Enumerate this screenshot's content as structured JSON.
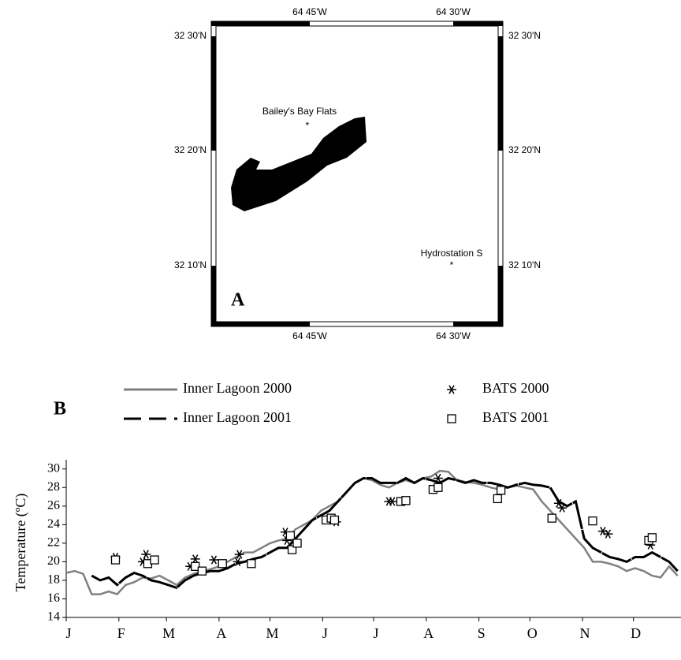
{
  "map": {
    "panel_label": "A",
    "x_labels": [
      "64 45'W",
      "64 30'W"
    ],
    "y_labels": [
      "32 30'N",
      "32 20'N",
      "32 10'N"
    ],
    "sites": [
      "Bailey's Bay Flats",
      "Hydrostation S"
    ]
  },
  "chart_data": {
    "type": "line",
    "panel_label": "B",
    "y_label": "Temperature (ºC)",
    "x": [
      0,
      5,
      10,
      15,
      20,
      25,
      30,
      35,
      40,
      45,
      50,
      55,
      60,
      65,
      70,
      75,
      80,
      85,
      90,
      95,
      100,
      105,
      110,
      115,
      120,
      125,
      130,
      135,
      140,
      145,
      150,
      155,
      160,
      165,
      170,
      175,
      180,
      185,
      190,
      195,
      200,
      205,
      210,
      215,
      220,
      225,
      230,
      235,
      240,
      245,
      250,
      255,
      260,
      265,
      270,
      275,
      280,
      285,
      290,
      295,
      300,
      305,
      310,
      315,
      320,
      325,
      330,
      335,
      340,
      345,
      350,
      355,
      360
    ],
    "xlim": [
      0,
      362
    ],
    "xticks": [
      {
        "value": 0,
        "label": "J"
      },
      {
        "value": 31,
        "label": "F"
      },
      {
        "value": 59,
        "label": "M"
      },
      {
        "value": 90,
        "label": "A"
      },
      {
        "value": 120,
        "label": "M"
      },
      {
        "value": 151,
        "label": "J"
      },
      {
        "value": 181,
        "label": "J"
      },
      {
        "value": 212,
        "label": "A"
      },
      {
        "value": 243,
        "label": "S"
      },
      {
        "value": 273,
        "label": "O"
      },
      {
        "value": 304,
        "label": "N"
      },
      {
        "value": 334,
        "label": "D"
      }
    ],
    "ylim": [
      14,
      31
    ],
    "yticks": [
      14,
      16,
      18,
      20,
      22,
      24,
      26,
      28,
      30
    ],
    "series": [
      {
        "name": "Inner Lagoon 2000",
        "type": "line",
        "color": "#808080",
        "linestyle": "solid",
        "values": [
          18.8,
          19,
          18.7,
          16.5,
          16.5,
          16.8,
          16.5,
          17.5,
          17.8,
          18.3,
          18.2,
          18.5,
          18.0,
          17.5,
          18.3,
          18.7,
          19.0,
          19.2,
          19.5,
          20.0,
          20.5,
          21.0,
          21.0,
          21.5,
          22.0,
          22.3,
          22.5,
          23.5,
          24.0,
          24.5,
          25.5,
          26.0,
          26.5,
          27.5,
          28.5,
          29.0,
          28.8,
          28.3,
          28.0,
          28.5,
          28.8,
          28.5,
          29.0,
          29.2,
          29.8,
          29.7,
          28.8,
          28.6,
          28.5,
          28.3,
          28.0,
          27.8,
          28.0,
          28.2,
          28.0,
          27.8,
          26.5,
          25.5,
          24.5,
          23.5,
          22.5,
          21.5,
          20.0,
          20.0,
          19.8,
          19.5,
          19.0,
          19.3,
          19.0,
          18.5,
          18.3,
          19.5,
          18.5
        ]
      },
      {
        "name": "Inner Lagoon 2001",
        "type": "line",
        "color": "#000000",
        "linestyle": "dashed",
        "values": [
          null,
          null,
          null,
          18.5,
          18.0,
          18.3,
          17.5,
          18.3,
          18.8,
          18.5,
          18.0,
          17.8,
          17.5,
          17.2,
          18.0,
          18.5,
          18.8,
          19.0,
          19.0,
          19.3,
          19.8,
          20.0,
          20.3,
          20.5,
          21.0,
          21.5,
          21.5,
          22.5,
          23.5,
          24.5,
          25.0,
          25.5,
          26.5,
          27.5,
          28.5,
          29.0,
          29.0,
          28.5,
          28.5,
          28.5,
          29.0,
          28.5,
          29.0,
          28.8,
          28.5,
          29.0,
          28.8,
          28.5,
          28.8,
          28.5,
          28.5,
          28.3,
          28.0,
          28.3,
          28.5,
          28.3,
          28.2,
          28.0,
          26.5,
          26.0,
          26.5,
          22.5,
          21.5,
          21.0,
          20.5,
          20.3,
          20.0,
          20.5,
          20.5,
          21.0,
          20.5,
          20.0,
          19.0
        ]
      },
      {
        "name": "BATS 2000",
        "type": "scatter",
        "marker": "star",
        "color": "#000000",
        "x": [
          29,
          45,
          47,
          73,
          76,
          87,
          101,
          102,
          129,
          130,
          159,
          190,
          192,
          219,
          290,
          292,
          316,
          319,
          344
        ],
        "values": [
          20.5,
          20.0,
          20.8,
          19.5,
          20.3,
          20.2,
          20.0,
          20.8,
          23.2,
          22.3,
          24.3,
          26.5,
          26.5,
          29.0,
          26.3,
          25.8,
          23.3,
          23.0,
          21.8
        ]
      },
      {
        "name": "BATS 2001",
        "type": "scatter",
        "marker": "square",
        "color": "#000000",
        "x": [
          29,
          48,
          52,
          76,
          80,
          92,
          109,
          132,
          133,
          136,
          153,
          156,
          158,
          197,
          200,
          216,
          219,
          254,
          256,
          286,
          310,
          343,
          345
        ],
        "values": [
          20.2,
          19.8,
          20.2,
          19.5,
          19.0,
          19.8,
          19.8,
          22.8,
          21.3,
          22.0,
          24.5,
          24.7,
          24.5,
          26.5,
          26.6,
          27.8,
          28.0,
          26.8,
          27.7,
          24.7,
          24.4,
          22.3,
          22.6
        ]
      }
    ]
  }
}
